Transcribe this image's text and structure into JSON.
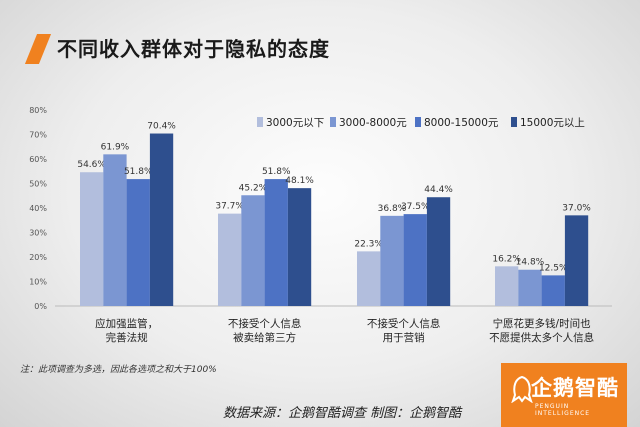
{
  "title": "不同收入群体对于隐私的态度",
  "note": "注：此项调查为多选，因此各选项之和大于100%",
  "source": "数据来源：企鹅智酷调查  制图：企鹅智酷",
  "logo": {
    "text": "企鹅智酷",
    "sub": "PENGUIN INTELLIGENCE"
  },
  "colors": {
    "accent": "#f0811f",
    "series": [
      "#b2bedd",
      "#7b96d2",
      "#4d72c4",
      "#2e4f8e"
    ]
  },
  "chart_data": {
    "type": "bar",
    "categories": [
      [
        "应加强监管，",
        "完善法规"
      ],
      [
        "不接受个人信息",
        "被卖给第三方"
      ],
      [
        "不接受个人信息",
        "用于营销"
      ],
      [
        "宁愿花更多钱/时间也",
        "不愿提供太多个人信息"
      ]
    ],
    "series": [
      {
        "name": "3000元以下",
        "values": [
          54.6,
          37.7,
          22.3,
          16.2
        ]
      },
      {
        "name": "3000-8000元",
        "values": [
          61.9,
          45.2,
          36.8,
          14.8
        ]
      },
      {
        "name": "8000-15000元",
        "values": [
          51.8,
          51.8,
          37.5,
          12.5
        ]
      },
      {
        "name": "15000元以上",
        "values": [
          70.4,
          48.1,
          44.4,
          37.0
        ]
      }
    ],
    "ylim": [
      0,
      80
    ],
    "yticks": [
      "0%",
      "10%",
      "20%",
      "30%",
      "40%",
      "50%",
      "60%",
      "70%",
      "80%"
    ],
    "legend": "top-right",
    "grid": false
  }
}
